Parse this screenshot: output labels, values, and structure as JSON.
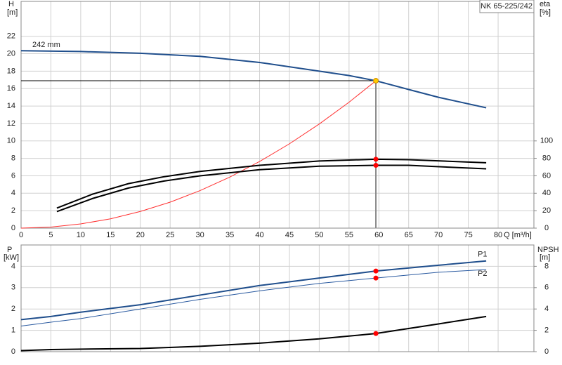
{
  "chart_data": [
    {
      "type": "line",
      "title": "NK 65-225/242",
      "ylabel": "H",
      "yunit": "[m]",
      "y2label": "eta",
      "y2unit": "[%]",
      "xlabel": "Q [m³/h]",
      "xlim": [
        0,
        86
      ],
      "xticks": [
        0,
        5,
        10,
        15,
        20,
        25,
        30,
        35,
        40,
        45,
        50,
        55,
        60,
        65,
        70,
        75,
        80
      ],
      "ylim": [
        0,
        26
      ],
      "yticks": [
        0,
        2,
        4,
        6,
        8,
        10,
        12,
        14,
        16,
        18,
        20,
        22
      ],
      "y2lim": [
        0,
        260
      ],
      "y2ticks": [
        0,
        20,
        40,
        60,
        80,
        100
      ],
      "grid": true,
      "operating_x": 59.5,
      "series": [
        {
          "name": "242 mm",
          "color": "#1f4e8c",
          "width": 2,
          "marker_color": "#ffcc00",
          "operating_line": "#000000",
          "x": [
            0,
            10,
            20,
            30,
            40,
            50,
            55,
            59.5,
            65,
            70,
            78
          ],
          "values": [
            20.35,
            20.25,
            20.05,
            19.7,
            19.0,
            18.0,
            17.5,
            16.9,
            15.9,
            15.0,
            13.8
          ]
        },
        {
          "color": "#ff3030",
          "width": 1,
          "x": [
            0,
            5,
            10,
            15,
            20,
            25,
            30,
            35,
            40,
            45,
            50,
            55,
            59.5
          ],
          "values": [
            0,
            0.12,
            0.48,
            1.07,
            1.91,
            2.98,
            4.3,
            5.85,
            7.64,
            9.67,
            11.94,
            14.44,
            16.9
          ]
        },
        {
          "color": "#000000",
          "width": 2,
          "axis": "y2",
          "marker_color": "#ff0000",
          "x": [
            6,
            12,
            18,
            24,
            30,
            40,
            50,
            59.5,
            65,
            78
          ],
          "values": [
            23,
            39,
            51,
            59,
            65,
            72,
            77,
            79,
            78.5,
            75
          ]
        },
        {
          "color": "#000000",
          "width": 2,
          "axis": "y2",
          "marker_color": "#ff0000",
          "x": [
            6,
            12,
            18,
            24,
            30,
            40,
            50,
            59.5,
            65,
            78
          ],
          "values": [
            19,
            34,
            46,
            54,
            60,
            67,
            71,
            72,
            72,
            68
          ]
        }
      ]
    },
    {
      "type": "line",
      "ylabel": "P",
      "yunit": "[kW]",
      "y2label": "NPSH",
      "y2unit": "[m]",
      "xlim": [
        0,
        86
      ],
      "ylim": [
        0,
        5
      ],
      "yticks": [
        0,
        1,
        2,
        3,
        4
      ],
      "y2lim": [
        0,
        10
      ],
      "y2ticks": [
        0,
        2,
        4,
        6,
        8
      ],
      "grid": true,
      "operating_x": 59.5,
      "series": [
        {
          "name": "P1",
          "color": "#1f4e8c",
          "width": 2,
          "marker_color": "#ff0000",
          "x": [
            0,
            5,
            10,
            20,
            30,
            40,
            50,
            59.5,
            70,
            78
          ],
          "values": [
            1.5,
            1.65,
            1.85,
            2.2,
            2.65,
            3.1,
            3.45,
            3.78,
            4.05,
            4.25
          ]
        },
        {
          "name": "P2",
          "color": "#2a5aa0",
          "width": 1,
          "marker_color": "#ff0000",
          "x": [
            0,
            5,
            10,
            20,
            30,
            40,
            50,
            59.5,
            70,
            78
          ],
          "values": [
            1.2,
            1.38,
            1.55,
            2.0,
            2.45,
            2.85,
            3.2,
            3.45,
            3.72,
            3.85
          ]
        },
        {
          "color": "#000000",
          "width": 2,
          "axis": "y2",
          "marker_color": "#ff0000",
          "x": [
            0,
            5,
            20,
            30,
            40,
            50,
            59.5,
            70,
            78
          ],
          "values": [
            0.1,
            0.2,
            0.3,
            0.5,
            0.8,
            1.2,
            1.7,
            2.6,
            3.3
          ]
        }
      ]
    }
  ]
}
